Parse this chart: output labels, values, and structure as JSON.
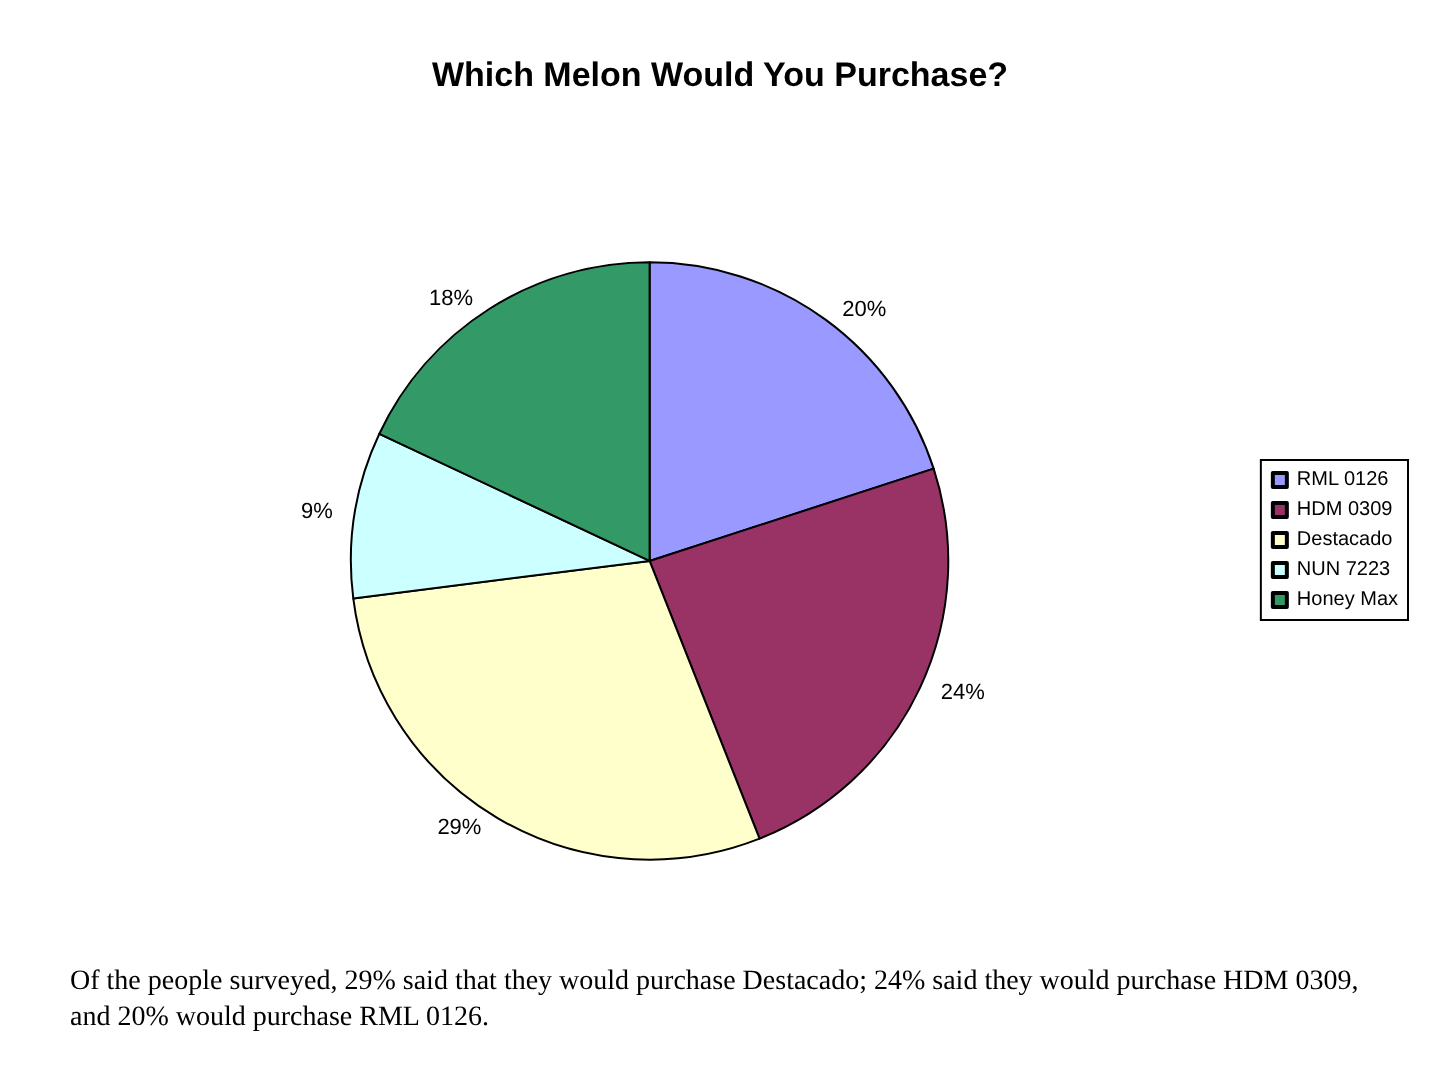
{
  "chart_data": {
    "type": "pie",
    "title": "Which Melon Would You Purchase?",
    "categories": [
      "RML 0126",
      "HDM 0309",
      "Destacado",
      "NUN 7223",
      "Honey Max"
    ],
    "values": [
      20,
      24,
      29,
      9,
      18
    ],
    "value_labels": [
      "20%",
      "24%",
      "29%",
      "9%",
      "18%"
    ],
    "colors": [
      "#9999ff",
      "#993366",
      "#ffffcc",
      "#ccffff",
      "#339966"
    ],
    "legend": "right",
    "annotations": [
      "Of the people surveyed, 29% said that they would purchase Destacado; 24% said they would purchase HDM 0309, and 20% would purchase RML 0126."
    ]
  }
}
